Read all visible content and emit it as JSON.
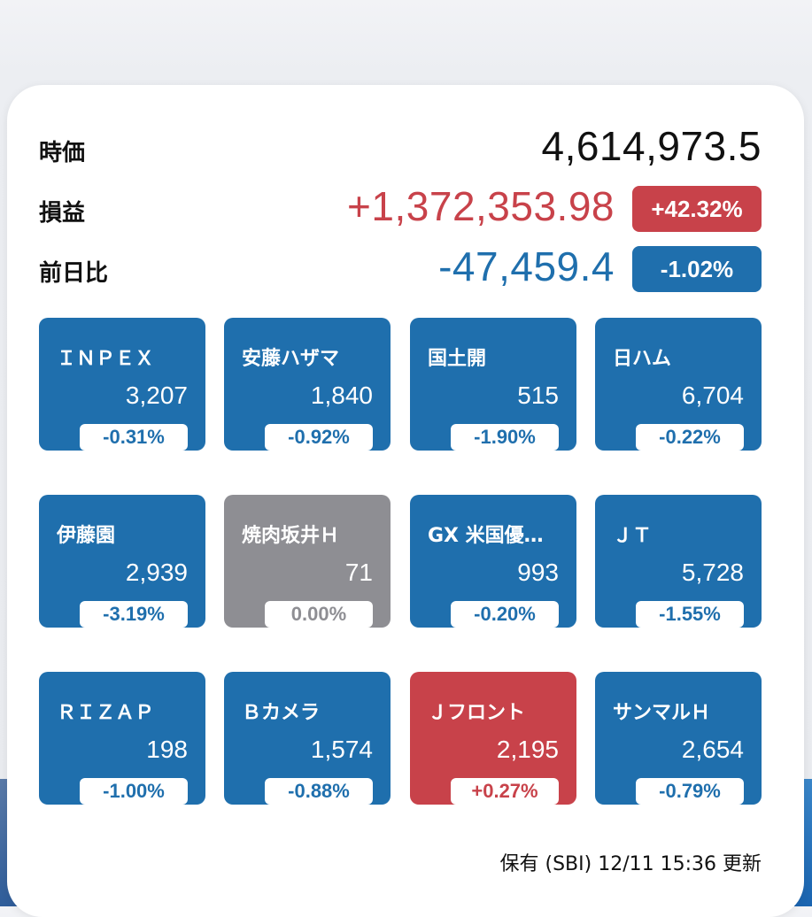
{
  "summary": {
    "market_value": {
      "label": "時価",
      "value": "4,614,973.5"
    },
    "profit": {
      "label": "損益",
      "value": "+1,372,353.98",
      "badge": "+42.32%"
    },
    "day_change": {
      "label": "前日比",
      "value": "-47,459.4",
      "badge": "-1.02%"
    }
  },
  "tiles": [
    {
      "name": "ＩＮＰＥＸ",
      "price": "3,207",
      "change": "-0.31%",
      "status": "down"
    },
    {
      "name": "安藤ハザマ",
      "price": "1,840",
      "change": "-0.92%",
      "status": "down"
    },
    {
      "name": "国土開",
      "price": "515",
      "change": "-1.90%",
      "status": "down"
    },
    {
      "name": "日ハム",
      "price": "6,704",
      "change": "-0.22%",
      "status": "down"
    },
    {
      "name": "伊藤園",
      "price": "2,939",
      "change": "-3.19%",
      "status": "down"
    },
    {
      "name": "焼肉坂井Ｈ",
      "price": "71",
      "change": "0.00%",
      "status": "flat"
    },
    {
      "name": "GX 米国優…",
      "price": "993",
      "change": "-0.20%",
      "status": "down"
    },
    {
      "name": "ＪＴ",
      "price": "5,728",
      "change": "-1.55%",
      "status": "down"
    },
    {
      "name": "ＲＩＺＡＰ",
      "price": "198",
      "change": "-1.00%",
      "status": "down"
    },
    {
      "name": "Ｂカメラ",
      "price": "1,574",
      "change": "-0.88%",
      "status": "down"
    },
    {
      "name": "Ｊフロント",
      "price": "2,195",
      "change": "+0.27%",
      "status": "up"
    },
    {
      "name": "サンマルＨ",
      "price": "2,654",
      "change": "-0.79%",
      "status": "down"
    }
  ],
  "footer": {
    "text": "保有 (SBI) 12/11 15:36 更新"
  },
  "colors": {
    "down": "#1f6fad",
    "up": "#c8424a",
    "flat": "#8e8e93",
    "text": "#111111",
    "card": "#ffffff"
  }
}
